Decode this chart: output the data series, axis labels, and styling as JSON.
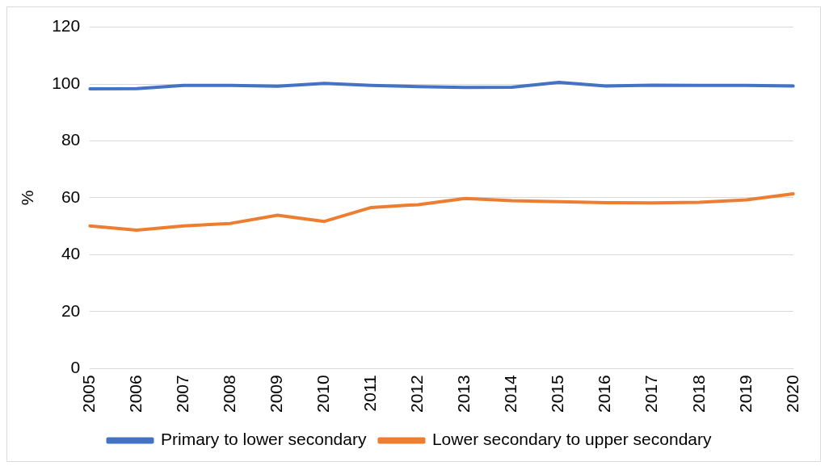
{
  "chart_data": {
    "type": "line",
    "ylabel": "%",
    "categories": [
      "2005",
      "2006",
      "2007",
      "2008",
      "2009",
      "2010",
      "2011",
      "2012",
      "2013",
      "2014",
      "2015",
      "2016",
      "2017",
      "2018",
      "2019",
      "2020"
    ],
    "series": [
      {
        "name": "Primary to lower secondary",
        "color": "#4472c4",
        "values": [
          98.3,
          98.4,
          99.5,
          99.5,
          99.2,
          100.2,
          99.5,
          99.1,
          98.8,
          98.9,
          100.6,
          99.3,
          99.6,
          99.5,
          99.5,
          99.3
        ]
      },
      {
        "name": "Lower secondary to upper secondary",
        "color": "#ed7d31",
        "values": [
          50.1,
          48.6,
          50.1,
          51.0,
          53.9,
          51.7,
          56.6,
          57.6,
          59.8,
          59.0,
          58.6,
          58.3,
          58.2,
          58.4,
          59.3,
          61.4
        ]
      }
    ],
    "ylim": [
      0,
      120
    ],
    "yticks": [
      0,
      20,
      40,
      60,
      80,
      100,
      120
    ],
    "grid": "y",
    "legend": "bottom",
    "marker": "none",
    "line_style": "solid"
  }
}
